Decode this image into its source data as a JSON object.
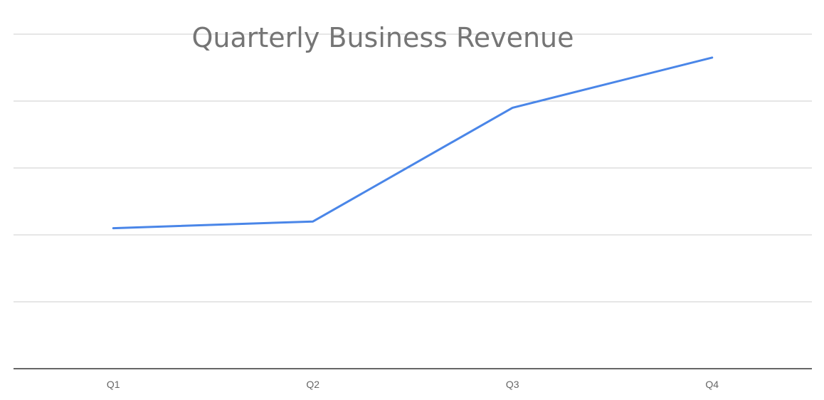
{
  "chart_data": {
    "type": "line",
    "title": "Quarterly Business Revenue",
    "xlabel": "",
    "ylabel": "",
    "categories": [
      "Q1",
      "Q2",
      "Q3",
      "Q4"
    ],
    "series": [
      {
        "values": [
          2.1,
          2.2,
          3.9,
          4.65
        ],
        "color": "#4a86e8"
      }
    ],
    "ylim": [
      0,
      5
    ],
    "grid": true,
    "legend": "none"
  }
}
